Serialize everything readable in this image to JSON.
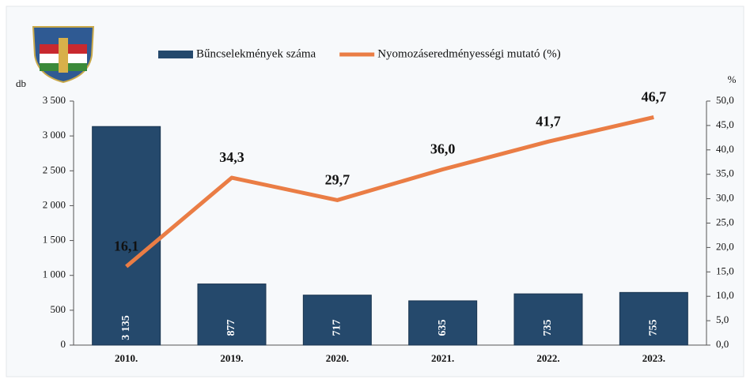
{
  "chart_data": {
    "type": "bar",
    "y_label": "db",
    "y2_label": "%",
    "categories": [
      "2010.",
      "2019.",
      "2020.",
      "2021.",
      "2022.",
      "2023."
    ],
    "series": [
      {
        "name": "Bűncselekmények száma",
        "type": "bar",
        "color": "#25496c",
        "values": [
          3135,
          877,
          717,
          635,
          735,
          755
        ],
        "value_labels": [
          "3 135",
          "877",
          "717",
          "635",
          "735",
          "755"
        ]
      },
      {
        "name": "Nyomozáseredményességi mutató (%)",
        "type": "line",
        "axis": "y2",
        "color": "#ea7d45",
        "values": [
          16.1,
          34.3,
          29.7,
          36.0,
          41.7,
          46.7
        ],
        "value_labels": [
          "16,1",
          "34,3",
          "29,7",
          "36,0",
          "41,7",
          "46,7"
        ]
      }
    ],
    "ylim": [
      0,
      3500
    ],
    "yticks": [
      0,
      500,
      {
        "value": 1000,
        "label": "1 000"
      },
      {
        "value": 1500,
        "label": "1 500"
      },
      {
        "value": 2000,
        "label": "2 000"
      },
      {
        "value": 2500,
        "label": "2 500"
      },
      {
        "value": 3000,
        "label": "3 000"
      },
      {
        "value": 3500,
        "label": "3 500"
      }
    ],
    "y2lim": [
      0,
      50
    ],
    "y2ticks": [
      {
        "value": 0,
        "label": "0,0"
      },
      {
        "value": 5,
        "label": "5,0"
      },
      {
        "value": 10,
        "label": "10,0"
      },
      {
        "value": 15,
        "label": "15,0"
      },
      {
        "value": 20,
        "label": "20,0"
      },
      {
        "value": 25,
        "label": "25,0"
      },
      {
        "value": 30,
        "label": "30,0"
      },
      {
        "value": 35,
        "label": "35,0"
      },
      {
        "value": 40,
        "label": "40,0"
      },
      {
        "value": 45,
        "label": "45,0"
      },
      {
        "value": 50,
        "label": "50,0"
      }
    ]
  }
}
